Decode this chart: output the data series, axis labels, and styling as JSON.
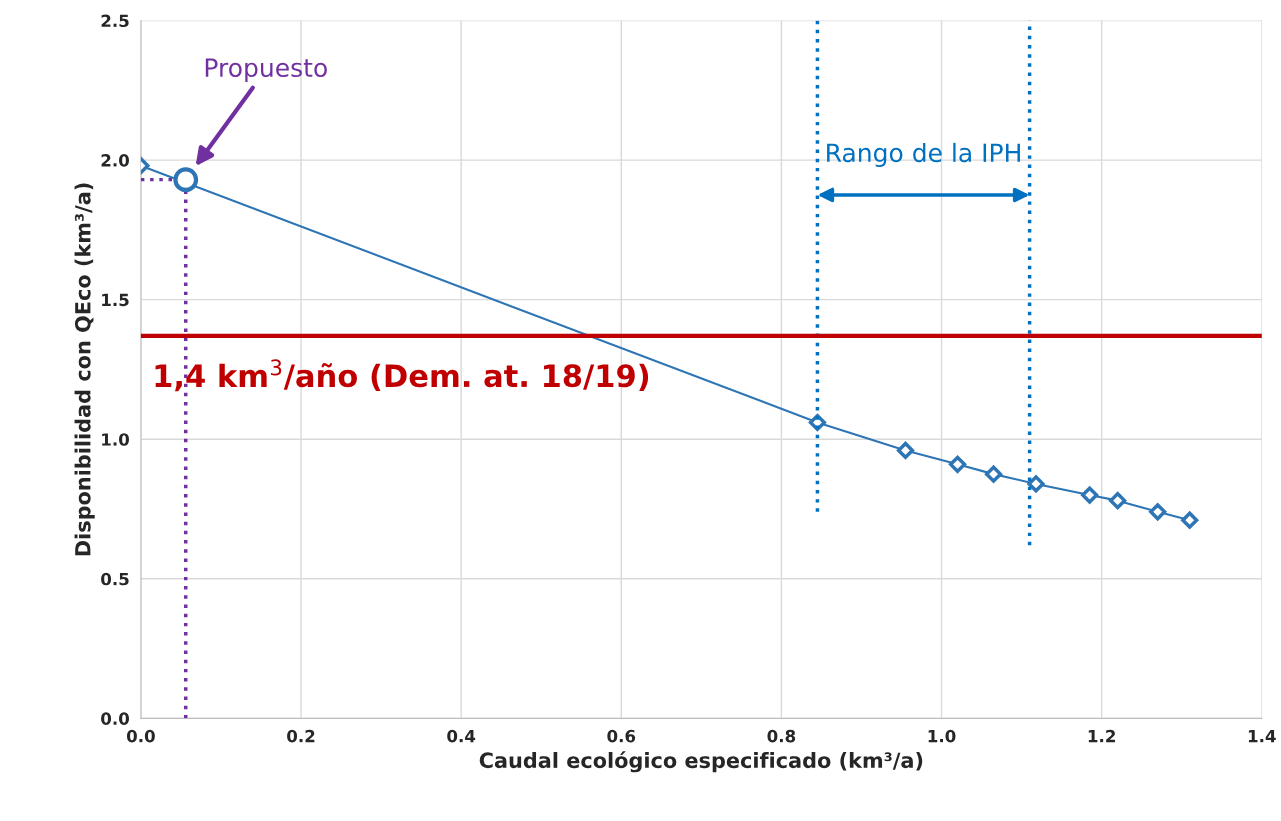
{
  "chart_data": {
    "type": "line",
    "xlabel": "Caudal ecológico especificado (km³/a)",
    "ylabel": "Disponibilidad con QEco (km³/a)",
    "xlim": [
      0,
      1.4
    ],
    "ylim": [
      0,
      2.5
    ],
    "xticks": [
      {
        "value": 0,
        "label": "0.0"
      },
      0.2,
      0.4,
      0.6,
      0.8,
      {
        "value": 1,
        "label": "1.0"
      },
      1.2,
      1.4
    ],
    "yticks": [
      {
        "value": 0,
        "label": "0.0"
      },
      0.5,
      {
        "value": 1,
        "label": "1.0"
      },
      1.5,
      {
        "value": 2,
        "label": "2.0"
      },
      2.5
    ],
    "grid": true,
    "legend": false,
    "series": [
      {
        "color": "#2e75b6",
        "marker": "diamond",
        "line_style": "solid",
        "x": [
          0,
          0.845,
          0.955,
          1.02,
          1.065,
          1.118,
          1.185,
          1.22,
          1.27,
          1.31
        ],
        "values": [
          1.98,
          1.06,
          0.96,
          0.91,
          0.875,
          0.84,
          0.8,
          0.78,
          0.74,
          0.71
        ]
      },
      {
        "type": "scatter",
        "color": "#2e75b6",
        "marker": "circle",
        "x": [
          0.056
        ],
        "values": [
          1.93
        ]
      },
      {
        "type": "line",
        "color": "#7030a0",
        "marker": "none",
        "line_style": "dotted",
        "x": [
          0.056,
          0.056
        ],
        "values": [
          0,
          1.93
        ]
      },
      {
        "type": "line",
        "color": "#7030a0",
        "marker": "none",
        "line_style": "dotted",
        "x": [
          0,
          0.056
        ],
        "values": [
          1.93,
          1.93
        ]
      },
      {
        "type": "line",
        "color": "#0070c0",
        "marker": "none",
        "line_style": "dotted",
        "x": [
          0.845,
          0.845
        ],
        "values": [
          0.74,
          2.5
        ]
      },
      {
        "type": "line",
        "color": "#0070c0",
        "marker": "none",
        "line_style": "dotted",
        "x": [
          1.11,
          1.11
        ],
        "values": [
          0.62,
          2.5
        ]
      }
    ],
    "ref_lines": [
      {
        "axis": "y",
        "value": 1.37,
        "label": "1,4 km$^{3}$/año (Dem. at. 18/19)",
        "color": "#c00000",
        "line_style": "solid"
      }
    ],
    "annotations": [
      "Propuesto",
      "Rango de la IPH"
    ]
  }
}
